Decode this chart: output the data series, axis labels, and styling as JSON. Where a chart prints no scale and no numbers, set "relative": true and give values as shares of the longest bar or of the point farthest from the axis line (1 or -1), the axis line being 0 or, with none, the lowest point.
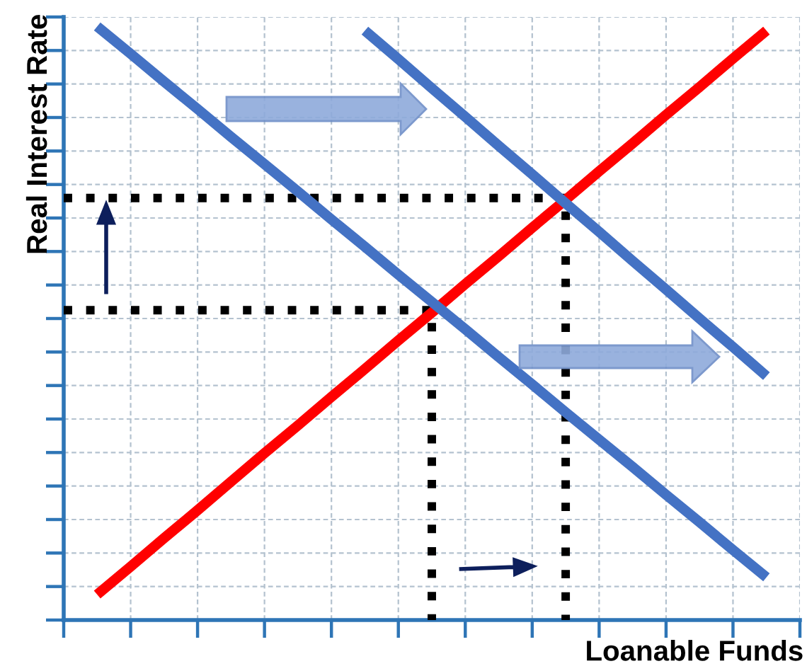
{
  "chart_data": {
    "type": "line",
    "xlabel": "Loanable Funds",
    "ylabel": "Real Interest Rate",
    "relative": true,
    "grid": true,
    "categories": [
      null,
      null,
      null,
      null,
      null,
      null,
      null,
      null,
      null,
      null,
      null,
      null,
      null,
      null,
      null,
      null,
      null,
      null,
      null,
      null,
      null,
      null,
      null
    ],
    "series": [
      {
        "type": "step",
        "color": "#000000",
        "line_style": "dotted",
        "values": [
          0.522,
          0.522,
          0.522,
          0.522,
          0.522,
          0.522,
          0.522,
          0.522,
          0.522,
          0.522,
          0.522,
          0,
          null,
          null,
          null,
          null,
          null,
          null,
          null,
          null,
          null,
          null,
          null
        ]
      },
      {
        "type": "step",
        "color": "#000000",
        "line_style": "dotted",
        "values": [
          0.711,
          0.711,
          0.711,
          0.711,
          0.711,
          0.711,
          0.711,
          0.711,
          0.711,
          0.711,
          0.711,
          0.711,
          0.711,
          0.711,
          0.711,
          0,
          null,
          null,
          null,
          null,
          null,
          null,
          null
        ]
      },
      {
        "color": "#ff0000",
        "values": [
          null,
          0.043,
          0.09,
          0.138,
          0.185,
          0.233,
          0.281,
          0.328,
          0.376,
          0.423,
          0.471,
          0.518,
          0.566,
          0.613,
          0.661,
          0.708,
          0.756,
          0.803,
          0.851,
          0.898,
          0.946,
          0.993,
          null
        ]
      },
      {
        "color": "#4472c4",
        "values": [
          null,
          1.0,
          0.954,
          0.907,
          0.861,
          0.814,
          0.768,
          0.722,
          0.675,
          0.629,
          0.582,
          0.536,
          0.49,
          0.443,
          0.397,
          0.35,
          0.304,
          0.258,
          0.211,
          0.165,
          0.118,
          0.072,
          null
        ]
      },
      {
        "color": "#4472c4",
        "values": [
          null,
          null,
          null,
          null,
          null,
          null,
          null,
          null,
          null,
          0.993,
          0.945,
          0.896,
          0.848,
          0.799,
          0.751,
          0.702,
          0.654,
          0.605,
          0.557,
          0.508,
          0.46,
          0.411,
          null
        ]
      }
    ]
  }
}
